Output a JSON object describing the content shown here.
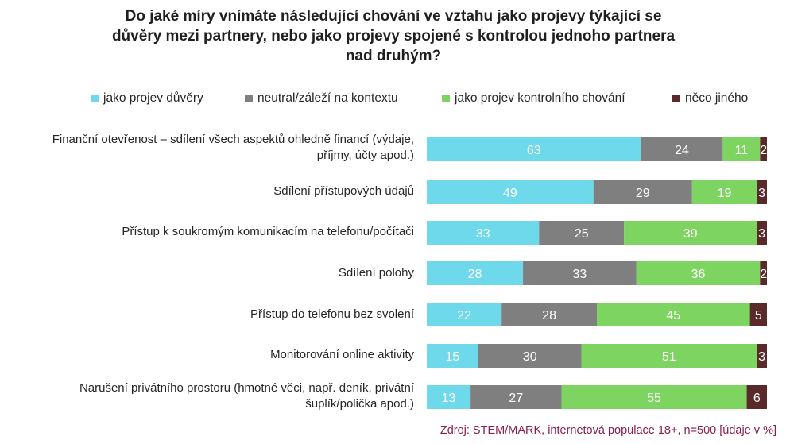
{
  "chart_data": {
    "type": "bar",
    "orientation": "horizontal",
    "stacked": true,
    "title_lines": [
      "Do jaké míry vnímáte následující chování ve vztahu jako projevy týkající se",
      "důvěry mezi partnery, nebo jako projevy spojené s kontrolou jednoho partnera",
      "nad druhým?"
    ],
    "legend_position": "top",
    "categories": [
      [
        "Finanční otevřenost – sdílení všech aspektů ohledně financí (výdaje,",
        "příjmy, účty apod.)"
      ],
      [
        "Sdílení přístupových údajů"
      ],
      [
        "Přístup k soukromým komunikacím na telefonu/počítači"
      ],
      [
        "Sdílení polohy"
      ],
      [
        "Přístup do telefonu bez svolení"
      ],
      [
        "Monitorování online aktivity"
      ],
      [
        "Narušení privátního prostoru (hmotné věci, např. deník, privátní",
        "šuplík/polička apod.)"
      ]
    ],
    "series": [
      {
        "name": "jako projev důvěry",
        "color": "#6dd9ea",
        "values": [
          63,
          49,
          33,
          28,
          22,
          15,
          13
        ]
      },
      {
        "name": "neutral/záleží na kontextu",
        "color": "#7f7f7f",
        "values": [
          24,
          29,
          25,
          33,
          28,
          30,
          27
        ]
      },
      {
        "name": "jako projev kontrolního chování",
        "color": "#7ed460",
        "values": [
          11,
          19,
          39,
          36,
          45,
          51,
          55
        ]
      },
      {
        "name": "něco jiného",
        "color": "#5a2a2a",
        "values": [
          2,
          3,
          3,
          2,
          5,
          3,
          6
        ]
      }
    ],
    "grid": false
  },
  "source_text": "Zdroj: STEM/MARK, internetová populace 18+, n=500 [údaje v %]"
}
